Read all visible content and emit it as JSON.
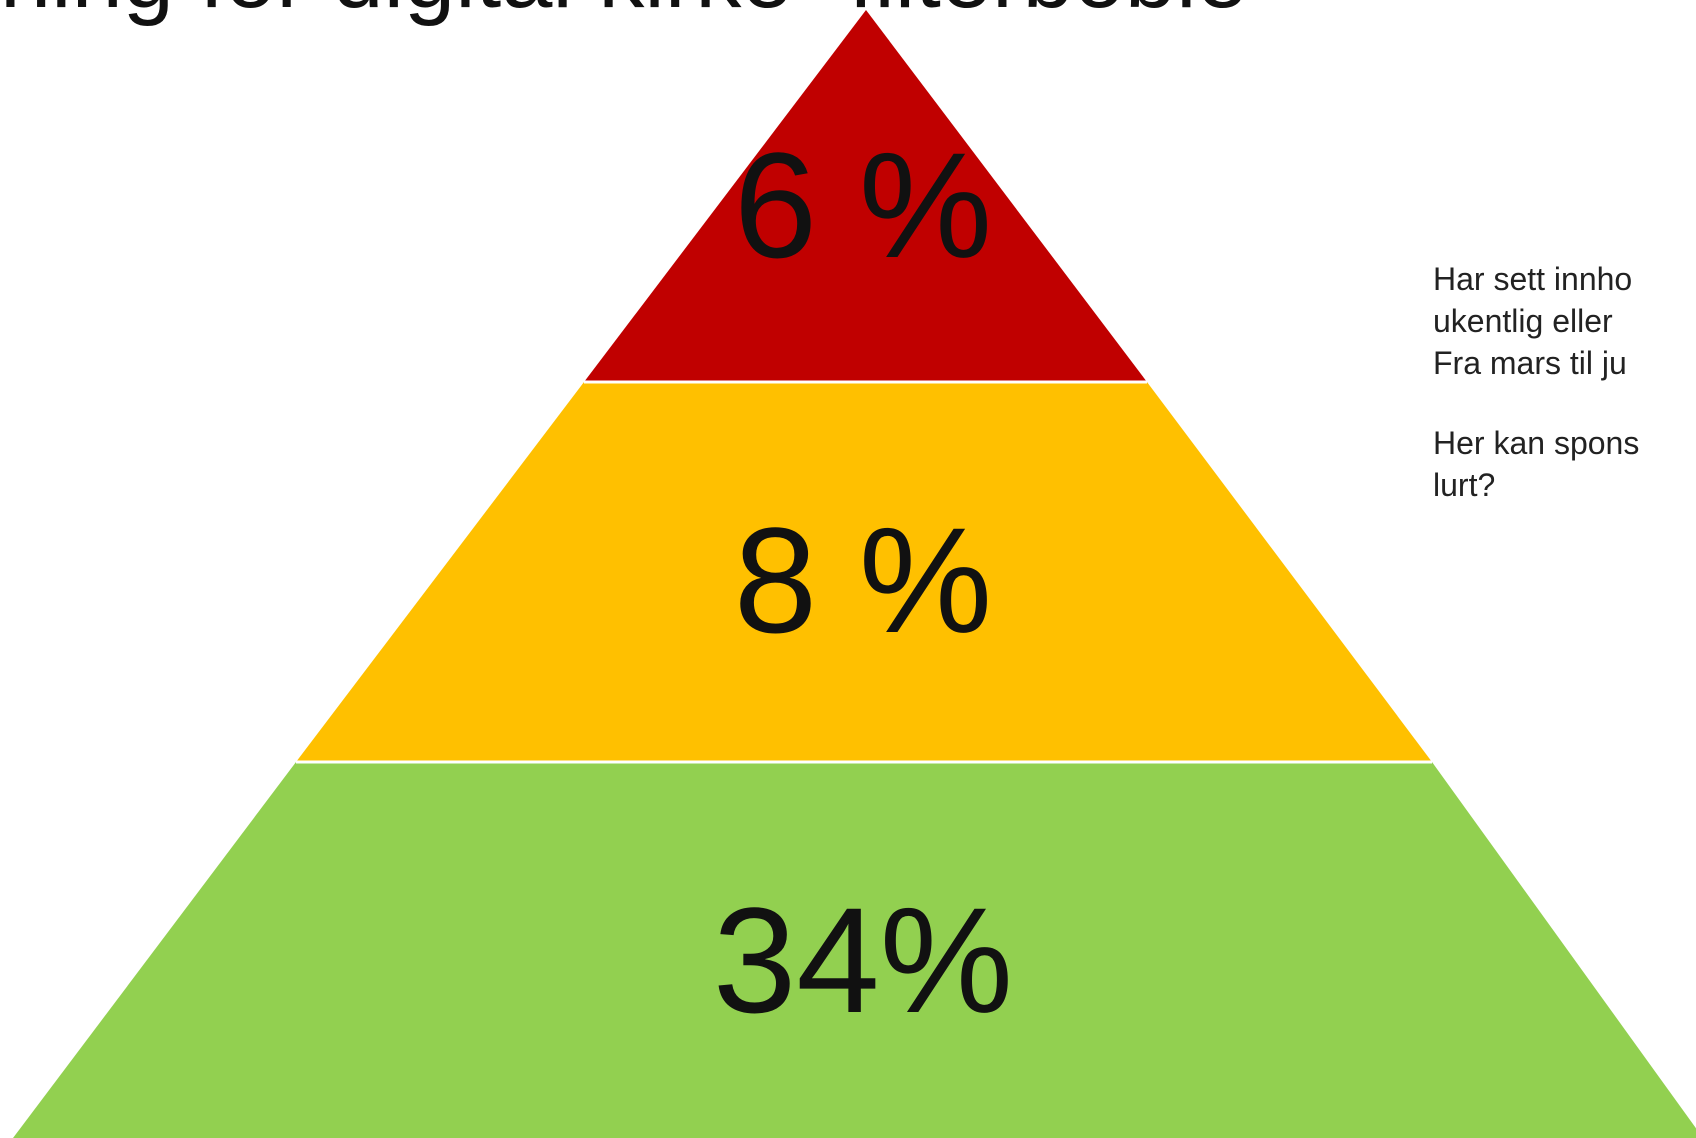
{
  "slide": {
    "title": "ning for digital kirke- filterboble"
  },
  "pyramid": {
    "levels": [
      {
        "label": "6 %",
        "value_percent": 6,
        "color": "#C00000"
      },
      {
        "label": "8 %",
        "value_percent": 8,
        "color": "#FFC000"
      },
      {
        "label": "34%",
        "value_percent": 34,
        "color": "#92D050"
      }
    ]
  },
  "note": {
    "lines": [
      "Har sett innho",
      "ukentlig eller",
      "Fra mars til ju",
      "Her kan spons",
      "lurt?"
    ]
  }
}
